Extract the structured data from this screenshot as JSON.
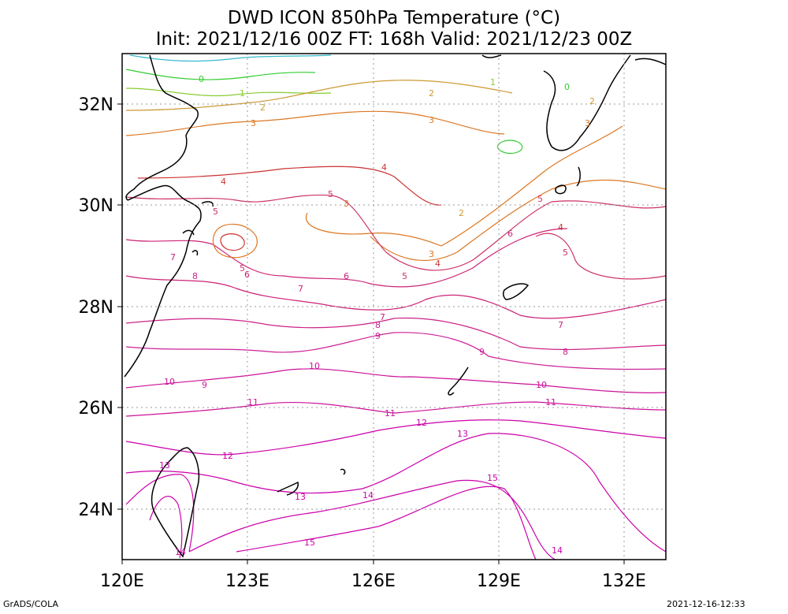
{
  "title": "DWD ICON 850hPa Temperature (°C)",
  "subtitle": "Init: 2021/12/16 00Z  FT: 168h  Valid: 2021/12/23 00Z",
  "footer_left": "GrADS/COLA",
  "footer_right": "2021-12-16-12:33",
  "map": {
    "lon_range": [
      120,
      133
    ],
    "lat_range": [
      23,
      33
    ],
    "lon_ticks": [
      "120E",
      "123E",
      "126E",
      "129E",
      "132E"
    ],
    "lat_ticks": [
      "32N",
      "30N",
      "28N",
      "26N",
      "24N"
    ],
    "grid_lines": "dotted",
    "contour_variable": "850hPa temperature",
    "contour_interval": 1
  },
  "contour_labels": [
    {
      "text": "0",
      "color": "#33cc33"
    },
    {
      "text": "1",
      "color": "#88cc33"
    },
    {
      "text": "2",
      "color": "#cc9933"
    },
    {
      "text": "3",
      "color": "#dd7722"
    },
    {
      "text": "4",
      "color": "#cc3333"
    },
    {
      "text": "5",
      "color": "#cc3366"
    },
    {
      "text": "6",
      "color": "#cc2277"
    },
    {
      "text": "7",
      "color": "#cc2277"
    },
    {
      "text": "8",
      "color": "#cc2288"
    },
    {
      "text": "9",
      "color": "#cc2299"
    },
    {
      "text": "10",
      "color": "#cc1199"
    },
    {
      "text": "11",
      "color": "#cc1199"
    },
    {
      "text": "12",
      "color": "#cc00aa"
    },
    {
      "text": "13",
      "color": "#cc00aa"
    },
    {
      "text": "14",
      "color": "#cc00aa"
    },
    {
      "text": "15",
      "color": "#cc00aa"
    }
  ]
}
